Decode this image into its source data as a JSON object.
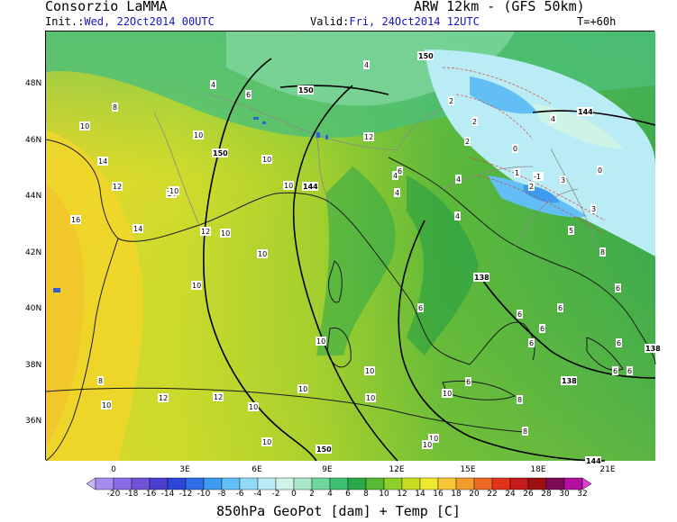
{
  "header": {
    "org": "Consorzio LaMMA",
    "model": "ARW 12km - (GFS 50km)",
    "init_label": "Init.:",
    "init_value": "Wed, 22Oct2014 00UTC",
    "valid_label": "Valid:",
    "valid_value": "Fri, 24Oct2014 12UTC",
    "lead": "T=+60h"
  },
  "axes": {
    "lat_labels": [
      "48N",
      "46N",
      "44N",
      "42N",
      "40N",
      "38N",
      "36N"
    ],
    "lon_labels": [
      "0",
      "3E",
      "6E",
      "9E",
      "12E",
      "15E",
      "18E",
      "21E"
    ]
  },
  "colorbar": {
    "labels": [
      "-20",
      "-18",
      "-16",
      "-14",
      "-12",
      "-10",
      "-8",
      "-6",
      "-4",
      "-2",
      "0",
      "2",
      "4",
      "6",
      "8",
      "10",
      "12",
      "14",
      "16",
      "18",
      "20",
      "22",
      "24",
      "26",
      "28",
      "30",
      "32"
    ],
    "colors": [
      "#c9b7f5",
      "#a78cf0",
      "#8a6ae6",
      "#6f52d8",
      "#4b3fcf",
      "#2e46d6",
      "#2d6ee8",
      "#3d9cf2",
      "#62bff5",
      "#8fdaf7",
      "#b9ecf5",
      "#cff3e6",
      "#a8e8c9",
      "#6fd69e",
      "#3fbf72",
      "#2aa84a",
      "#57b833",
      "#8fcf2a",
      "#c6dd22",
      "#eee82e",
      "#f5c734",
      "#f29c2c",
      "#ec6a24",
      "#e0331c",
      "#c51a1a",
      "#9c1010",
      "#7c0c55",
      "#b40f9e",
      "#e040d8"
    ]
  },
  "map": {
    "temp_labels": [
      "4",
      "4",
      "6",
      "8",
      "10",
      "10",
      "12",
      "10",
      "14",
      "12",
      "16",
      "14",
      "14",
      "12",
      "10",
      "10",
      "10",
      "10",
      "10",
      "10",
      "10",
      "10",
      "10",
      "10",
      "10",
      "10",
      "10",
      "8",
      "8",
      "6",
      "6",
      "6",
      "6",
      "6",
      "6",
      "4",
      "4",
      "4",
      "2",
      "2",
      "1",
      "0",
      "-1",
      "3",
      "3",
      "0",
      "2",
      "2",
      "4",
      "5",
      "6",
      "8",
      "6",
      "6",
      "6",
      "4",
      "6",
      "8",
      "12",
      "12",
      "10",
      "10"
    ],
    "geopot_labels": [
      "150",
      "150",
      "150",
      "144",
      "144",
      "138",
      "138",
      "138",
      "150",
      "144"
    ]
  },
  "footer": "850hPa GeoPot [dam] + Temp [C]"
}
